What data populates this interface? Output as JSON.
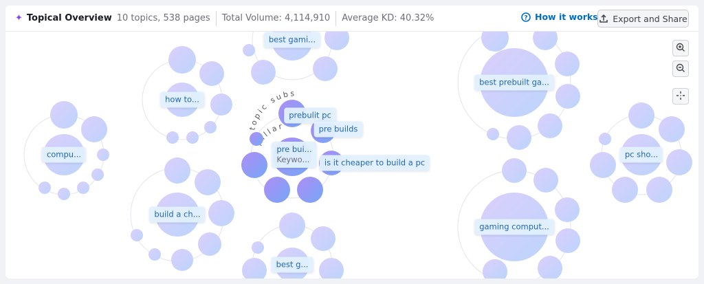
{
  "header": {
    "title": "Topical Overview",
    "topics": "10 topics, 538 pages",
    "volume": "Total Volume: 4,114,910",
    "kd": "Average KD: 40.32%",
    "how_it_works": "How it works",
    "export": "Export and Share"
  },
  "clusters": [
    {
      "label": "compu..."
    },
    {
      "label": "how to..."
    },
    {
      "label": "best gami..."
    },
    {
      "label": "build a ch..."
    },
    {
      "label": "pre bui...",
      "sub": "Keywo..."
    },
    {
      "label": "best g..."
    },
    {
      "label": "best prebuilt ga..."
    },
    {
      "label": "gaming comput..."
    },
    {
      "label": "pc sho..."
    }
  ],
  "pillar_subs": [
    {
      "label": "prebulit pc"
    },
    {
      "label": "pre builds"
    },
    {
      "label": "is it cheaper to build a pc"
    }
  ],
  "arc_labels": {
    "topic_subs": "topic subs",
    "pillar": "pillar"
  },
  "controls": {
    "zoom_in": "zoom-in-icon",
    "zoom_out": "zoom-out-icon",
    "center": "center-icon"
  },
  "colors": {
    "accent": "#006dca",
    "bubble_light": "#d8cdfb",
    "bubble_dark": "#8f8af5"
  }
}
